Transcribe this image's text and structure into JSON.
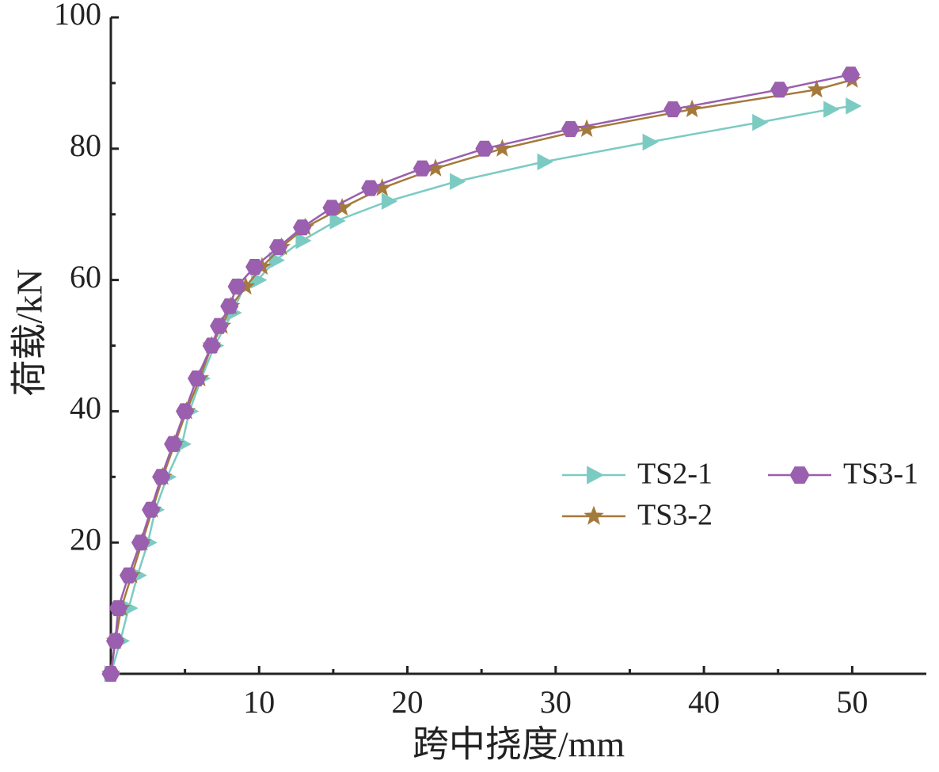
{
  "chart_data": {
    "type": "line",
    "x_label": "跨中挠度/mm",
    "y_label": "荷载/kN",
    "xlim": [
      0,
      55
    ],
    "ylim": [
      0,
      100
    ],
    "xticks": [
      10,
      20,
      30,
      40,
      50
    ],
    "yticks": [
      20,
      40,
      60,
      80,
      100
    ],
    "xminorticks": [
      5,
      15,
      25,
      35,
      45
    ],
    "yminorticks": [
      10,
      30,
      50,
      70,
      90
    ],
    "series": [
      {
        "name": "TS2-1",
        "color": "#7ccbc3",
        "marker": "triangle",
        "x": [
          0,
          0.64,
          1.2,
          1.8,
          2.5,
          3.0,
          3.8,
          4.8,
          5.3,
          6.1,
          7.0,
          8.2,
          9.0,
          9.9,
          11.1,
          12.9,
          15.2,
          18.7,
          23.3,
          29.2,
          36.3,
          43.7,
          48.5,
          50
        ],
        "values": [
          0,
          5,
          10,
          15,
          20,
          25,
          30,
          35,
          40,
          45,
          50,
          55,
          59,
          60,
          63,
          66,
          69,
          72,
          75,
          78,
          81,
          84,
          86,
          86.5
        ]
      },
      {
        "name": "TS3-2",
        "color": "#a47a3c",
        "marker": "star",
        "x": [
          0,
          0.3,
          0.7,
          1.4,
          2.1,
          2.8,
          3.5,
          4.3,
          5.1,
          6.0,
          6.8,
          7.5,
          8.1,
          9.1,
          10.2,
          11.5,
          13.1,
          15.6,
          18.3,
          21.9,
          26.4,
          32.1,
          39.2,
          47.6,
          50
        ],
        "values": [
          0,
          5,
          10,
          15,
          20,
          25,
          30,
          35,
          40,
          45,
          50,
          53,
          56,
          59,
          62,
          65,
          68,
          71,
          74,
          77,
          80,
          83,
          86,
          89,
          90.5
        ]
      },
      {
        "name": "TS3-1",
        "color": "#9a5fae",
        "marker": "hexagon",
        "x": [
          0,
          0.3,
          0.5,
          1.2,
          2.0,
          2.7,
          3.4,
          4.2,
          5.0,
          5.8,
          6.8,
          7.3,
          8.0,
          8.5,
          9.7,
          11.3,
          12.9,
          14.9,
          17.5,
          21.0,
          25.2,
          31.0,
          37.9,
          45.1,
          49.9
        ],
        "values": [
          0,
          5,
          10,
          15,
          20,
          25,
          30,
          35,
          40,
          45,
          50,
          53,
          56,
          59,
          62,
          65,
          68,
          71,
          74,
          77,
          80,
          83,
          86,
          89,
          91.3
        ]
      }
    ]
  }
}
